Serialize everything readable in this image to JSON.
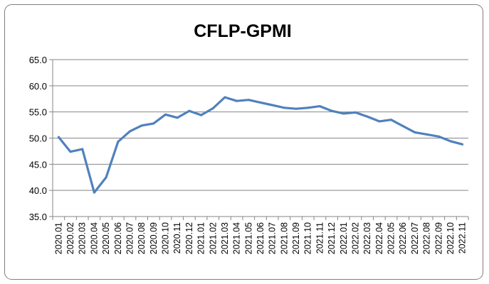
{
  "chart_data": {
    "type": "line",
    "title": "CFLP-GPMI",
    "xlabel": "",
    "ylabel": "",
    "ylim": [
      35,
      65
    ],
    "yticks": [
      "35.0",
      "40.0",
      "45.0",
      "50.0",
      "55.0",
      "60.0",
      "65.0"
    ],
    "grid": true,
    "legend": "none",
    "line_color": "#4F81BD",
    "categories": [
      "2020.01",
      "2020.02",
      "2020.03",
      "2020.04",
      "2020.05",
      "2020.06",
      "2020.07",
      "2020.08",
      "2020.09",
      "2020.10",
      "2020.11",
      "2020.12",
      "2021.01",
      "2021.02",
      "2021.03",
      "2021.04",
      "2021.05",
      "2021.06",
      "2021.07",
      "2021.08",
      "2021.09",
      "2021.10",
      "2021.11",
      "2021.12",
      "2022.01",
      "2022.02",
      "2022.03",
      "2022.04",
      "2022.05",
      "2022.06",
      "2022.07",
      "2022.08",
      "2022.09",
      "2022.10",
      "2022.11"
    ],
    "values": [
      50.2,
      47.4,
      47.9,
      39.6,
      42.5,
      49.3,
      51.3,
      52.4,
      52.8,
      54.5,
      53.9,
      55.2,
      54.4,
      55.7,
      57.8,
      57.1,
      57.3,
      56.8,
      56.3,
      55.8,
      55.6,
      55.8,
      56.1,
      55.2,
      54.7,
      54.9,
      54.1,
      53.2,
      53.5,
      52.3,
      51.1,
      50.7,
      50.3,
      49.4,
      48.8
    ]
  }
}
